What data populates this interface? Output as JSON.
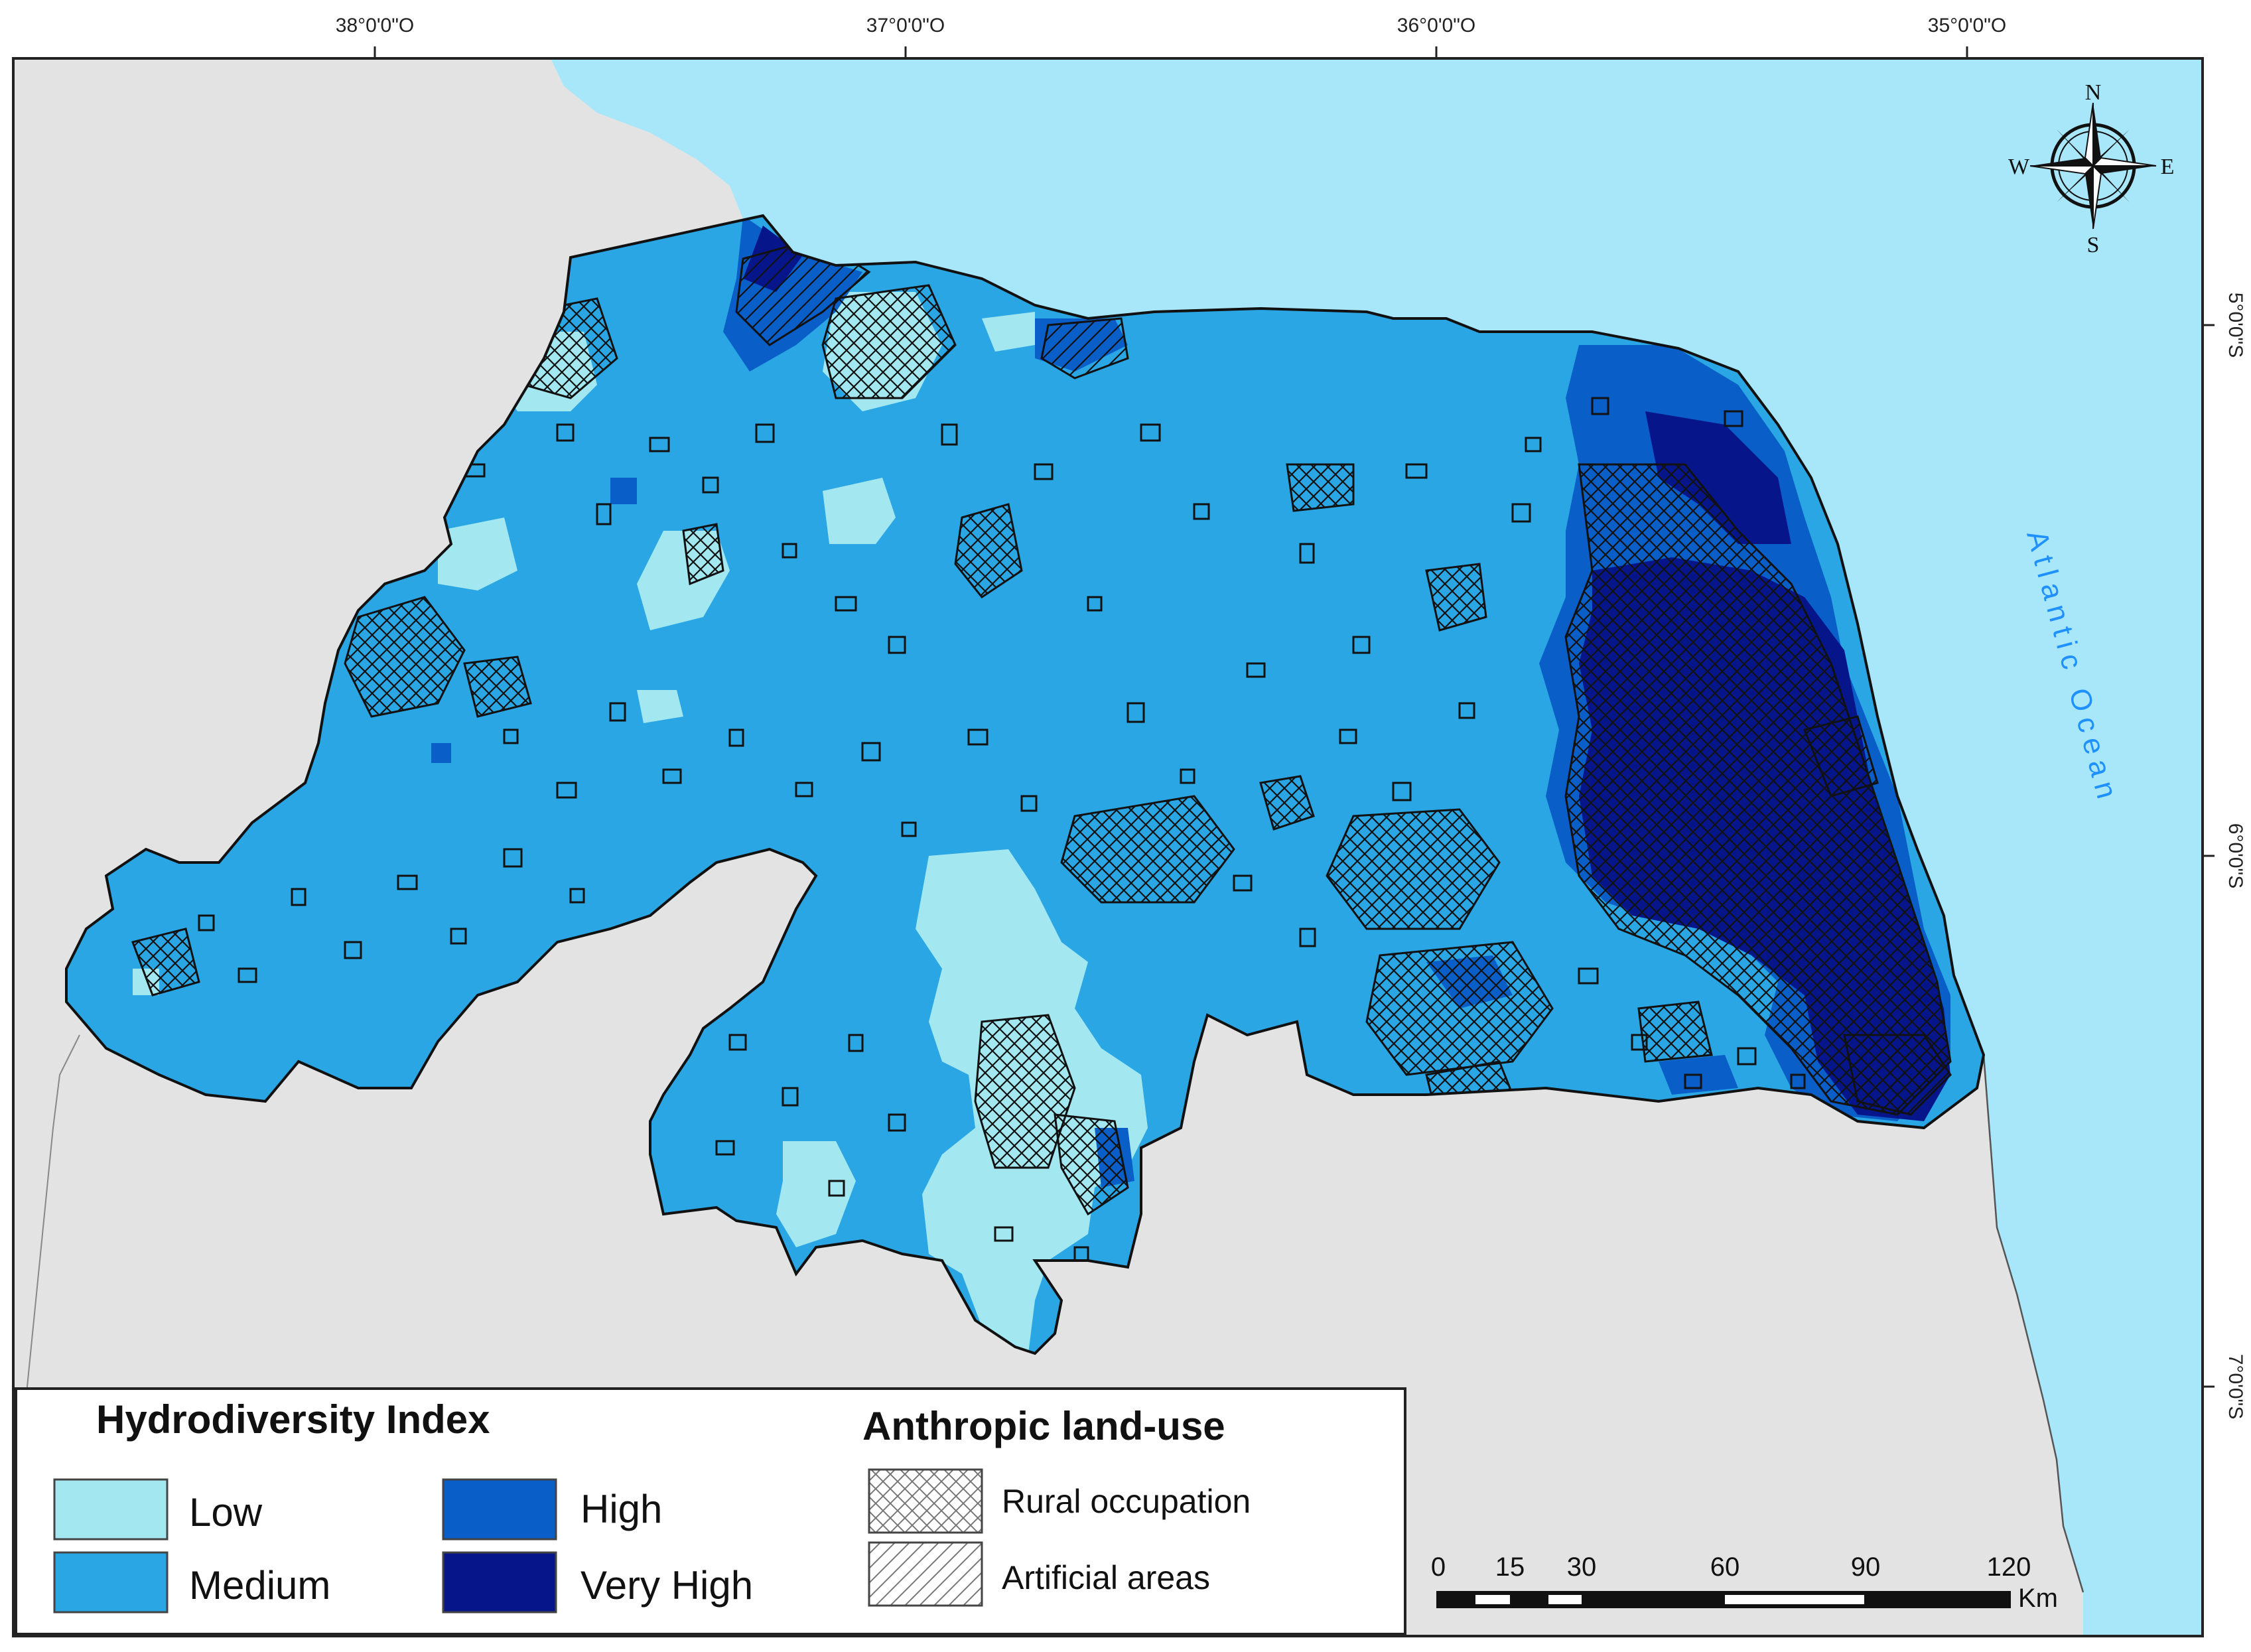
{
  "map": {
    "ocean_label": "Atlantic Ocean",
    "longitude_ticks": [
      "38°0'0\"O",
      "37°0'0\"O",
      "36°0'0\"O",
      "35°0'0\"O"
    ],
    "latitude_ticks": [
      "5°0'0\"S",
      "6°0'0\"S",
      "7°0'0\"S"
    ],
    "colors": {
      "ocean": "#a8e6fa",
      "land_outside": "#e3e3e3",
      "low": "#a3e8f0",
      "medium": "#2aa6e4",
      "high": "#0a5ec8",
      "very_high": "#06168a"
    }
  },
  "compass": {
    "north": "N",
    "south": "S",
    "east": "E",
    "west": "W"
  },
  "legend": {
    "hydro_title": "Hydrodiversity Index",
    "hydro_classes": [
      {
        "label": "Low",
        "color": "#a3e8f0"
      },
      {
        "label": "Medium",
        "color": "#2aa6e4"
      },
      {
        "label": "High",
        "color": "#0a5ec8"
      },
      {
        "label": "Very High",
        "color": "#06168a"
      }
    ],
    "landuse_title": "Anthropic land-use",
    "landuse_classes": [
      {
        "label": "Rural occupation",
        "pattern": "crosshatch"
      },
      {
        "label": "Artificial areas",
        "pattern": "diagonal"
      }
    ]
  },
  "scale_bar": {
    "labels": [
      "0",
      "15",
      "30",
      "60",
      "90",
      "120"
    ],
    "unit": "Km"
  }
}
